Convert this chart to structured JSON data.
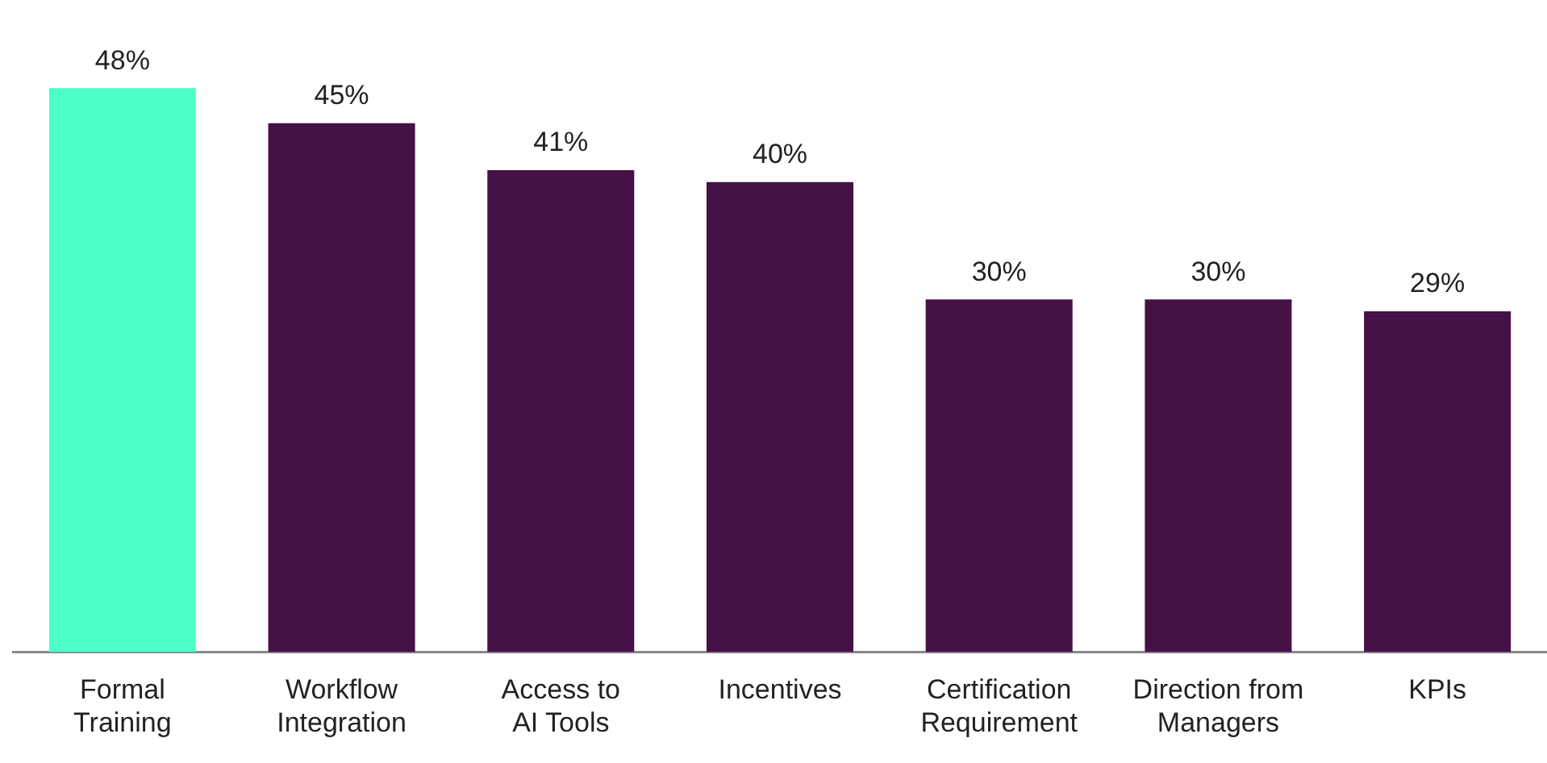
{
  "chart_data": {
    "type": "bar",
    "relative": false,
    "categories": [
      "Formal Training",
      "Workflow Integration",
      "Access to AI Tools",
      "Incentives",
      "Certification Requirement",
      "Direction from Managers",
      "KPIs"
    ],
    "values": [
      48,
      45,
      41,
      40,
      30,
      30,
      29
    ],
    "value_labels": [
      "48%",
      "45%",
      "41%",
      "40%",
      "30%",
      "30%",
      "29%"
    ],
    "colors": [
      "#4dffc8",
      "#461147",
      "#461147",
      "#461147",
      "#461147",
      "#461147",
      "#461147"
    ],
    "grid": false,
    "legend": false
  }
}
